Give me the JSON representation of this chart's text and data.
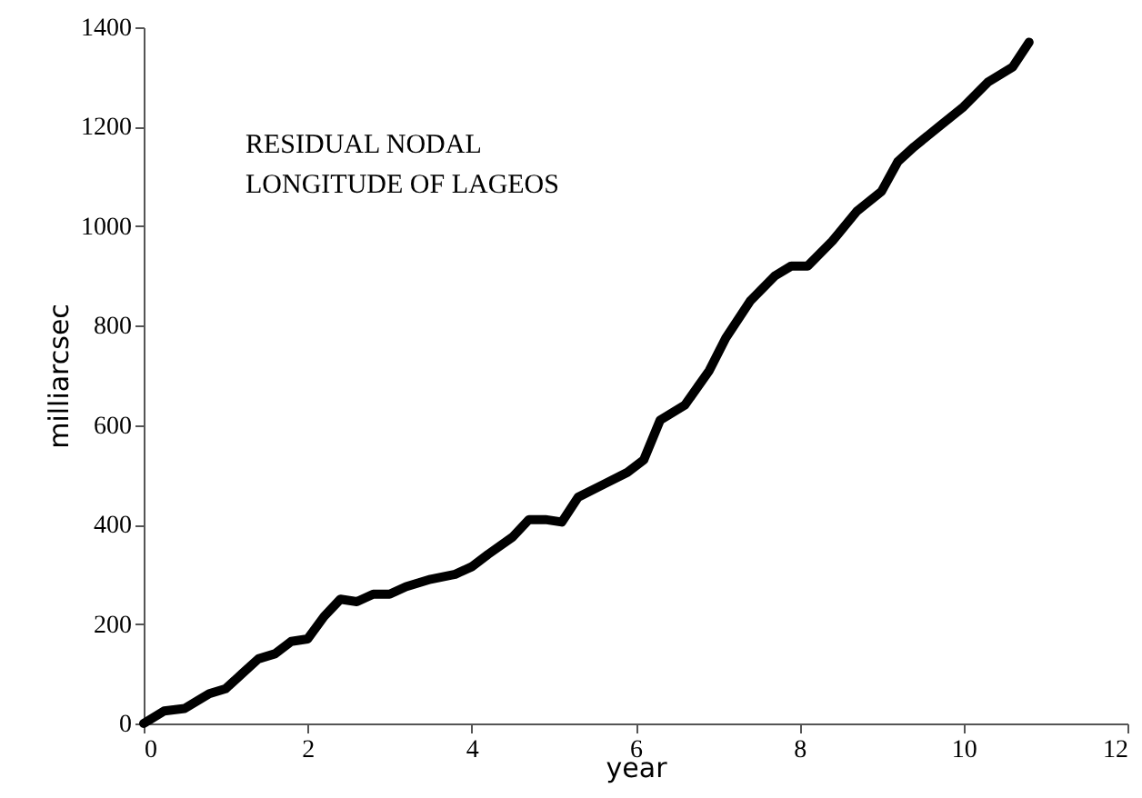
{
  "chart_data": {
    "type": "line",
    "xlabel": "year",
    "ylabel": "milliarcsec",
    "annotations": [
      "RESIDUAL NODAL\nLONGITUDE OF LAGEOS"
    ],
    "x": [
      0,
      0.25,
      0.5,
      0.8,
      1.0,
      1.2,
      1.4,
      1.6,
      1.8,
      2.0,
      2.2,
      2.4,
      2.6,
      2.8,
      3.0,
      3.2,
      3.5,
      3.8,
      4.0,
      4.2,
      4.5,
      4.7,
      4.9,
      5.1,
      5.3,
      5.6,
      5.9,
      6.1,
      6.3,
      6.6,
      6.9,
      7.1,
      7.4,
      7.7,
      7.9,
      8.1,
      8.4,
      8.7,
      9.0,
      9.2,
      9.4,
      9.7,
      10.0,
      10.3,
      10.6,
      10.8
    ],
    "series": [
      {
        "color": "#000000",
        "values": [
          0,
          25,
          30,
          60,
          70,
          100,
          130,
          140,
          165,
          170,
          215,
          250,
          245,
          260,
          260,
          275,
          290,
          300,
          315,
          340,
          375,
          410,
          410,
          405,
          455,
          480,
          505,
          530,
          610,
          640,
          710,
          775,
          850,
          900,
          920,
          920,
          970,
          1030,
          1070,
          1130,
          1160,
          1200,
          1240,
          1290,
          1320,
          1370
        ]
      }
    ],
    "xlim": [
      0,
      12
    ],
    "xticks": [
      0,
      2,
      4,
      6,
      8,
      10,
      12
    ],
    "ylim": [
      0,
      1400
    ],
    "yticks": [
      0,
      200,
      400,
      600,
      800,
      1000,
      1200,
      1400
    ],
    "grid": false,
    "marker": "none",
    "line_style": "solid"
  }
}
